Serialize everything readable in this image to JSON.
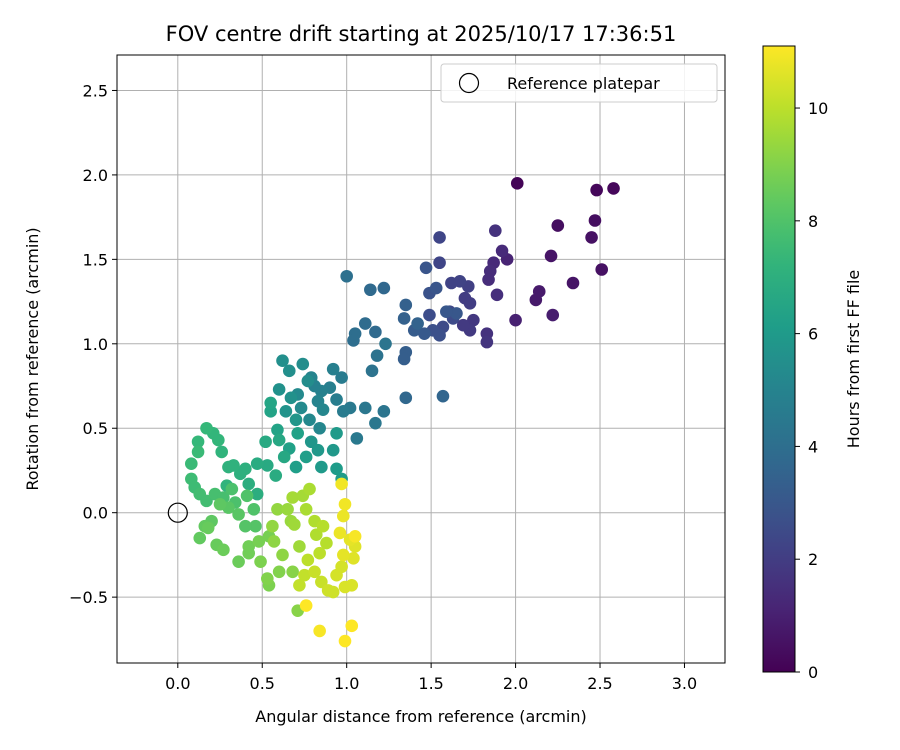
{
  "chart_data": {
    "type": "scatter",
    "title": "FOV centre drift starting at 2025/10/17 17:36:51",
    "xlabel": "Angular distance from reference (arcmin)",
    "ylabel": "Rotation from reference (arcmin)",
    "xlim": [
      -0.36,
      3.24
    ],
    "ylim": [
      -0.89,
      2.71
    ],
    "xticks": [
      0.0,
      0.5,
      1.0,
      1.5,
      2.0,
      2.5,
      3.0
    ],
    "xtick_labels": [
      "0.0",
      "0.5",
      "1.0",
      "1.5",
      "2.0",
      "2.5",
      "3.0"
    ],
    "yticks": [
      -0.5,
      0.0,
      0.5,
      1.0,
      1.5,
      2.0,
      2.5
    ],
    "ytick_labels": [
      "−0.5",
      "0.0",
      "0.5",
      "1.0",
      "1.5",
      "2.0",
      "2.5"
    ],
    "grid": true,
    "legend": {
      "position": "upper-right",
      "entries": [
        "Reference platepar"
      ]
    },
    "colorbar": {
      "label": "Hours from first FF file",
      "colormap": "viridis",
      "range": [
        0,
        11.1
      ],
      "ticks": [
        0,
        2,
        4,
        6,
        8,
        10
      ],
      "tick_labels": [
        "0",
        "2",
        "4",
        "6",
        "8",
        "10"
      ]
    },
    "reference_point": {
      "x": 0.0,
      "y": 0.0,
      "label": "Reference platepar"
    },
    "series": [
      {
        "columns": [
          "x",
          "y",
          "hours"
        ],
        "points": [
          [
            2.01,
            1.95,
            0.1
          ],
          [
            2.48,
            1.91,
            0.2
          ],
          [
            2.58,
            1.92,
            0.2
          ],
          [
            2.25,
            1.7,
            0.4
          ],
          [
            2.47,
            1.73,
            0.4
          ],
          [
            2.45,
            1.63,
            0.5
          ],
          [
            2.51,
            1.44,
            0.5
          ],
          [
            2.21,
            1.52,
            0.6
          ],
          [
            2.34,
            1.36,
            0.6
          ],
          [
            2.14,
            1.31,
            0.8
          ],
          [
            2.12,
            1.26,
            0.8
          ],
          [
            2.22,
            1.17,
            0.9
          ],
          [
            2.0,
            1.14,
            1.0
          ],
          [
            1.95,
            1.5,
            1.1
          ],
          [
            1.92,
            1.55,
            1.3
          ],
          [
            1.87,
            1.48,
            1.3
          ],
          [
            1.85,
            1.43,
            1.4
          ],
          [
            1.84,
            1.38,
            1.4
          ],
          [
            1.89,
            1.29,
            1.5
          ],
          [
            1.88,
            1.67,
            1.6
          ],
          [
            1.83,
            1.06,
            1.6
          ],
          [
            1.83,
            1.01,
            1.7
          ],
          [
            1.75,
            1.14,
            1.8
          ],
          [
            1.73,
            1.08,
            1.9
          ],
          [
            1.69,
            1.11,
            1.9
          ],
          [
            1.7,
            1.27,
            2.0
          ],
          [
            1.73,
            1.24,
            2.0
          ],
          [
            1.72,
            1.34,
            2.1
          ],
          [
            1.67,
            1.37,
            2.2
          ],
          [
            1.62,
            1.36,
            2.2
          ],
          [
            1.55,
            1.63,
            2.3
          ],
          [
            1.55,
            1.48,
            2.3
          ],
          [
            1.61,
            1.19,
            2.4
          ],
          [
            1.63,
            1.15,
            2.5
          ],
          [
            1.57,
            1.1,
            2.5
          ],
          [
            1.49,
            1.17,
            2.6
          ],
          [
            1.51,
            1.08,
            2.7
          ],
          [
            1.55,
            1.05,
            2.7
          ],
          [
            1.49,
            1.3,
            2.8
          ],
          [
            1.53,
            1.33,
            2.9
          ],
          [
            1.47,
            1.45,
            2.9
          ],
          [
            1.65,
            1.18,
            3.0
          ],
          [
            1.59,
            1.19,
            3.0
          ],
          [
            1.46,
            1.06,
            3.1
          ],
          [
            1.4,
            1.08,
            3.2
          ],
          [
            1.35,
            0.95,
            3.3
          ],
          [
            1.34,
            0.91,
            3.3
          ],
          [
            1.34,
            1.15,
            3.4
          ],
          [
            1.35,
            1.23,
            3.4
          ],
          [
            1.42,
            1.12,
            3.5
          ],
          [
            1.57,
            0.69,
            3.6
          ],
          [
            1.35,
            0.68,
            3.7
          ],
          [
            1.22,
            1.33,
            3.7
          ],
          [
            1.14,
            1.32,
            3.8
          ],
          [
            1.17,
            1.07,
            3.8
          ],
          [
            1.11,
            1.12,
            3.9
          ],
          [
            1.05,
            1.06,
            4.0
          ],
          [
            1.04,
            1.02,
            4.0
          ],
          [
            1.0,
            1.4,
            4.1
          ],
          [
            1.18,
            0.93,
            4.2
          ],
          [
            1.15,
            0.84,
            4.2
          ],
          [
            1.23,
            1.0,
            4.3
          ],
          [
            1.22,
            0.6,
            4.3
          ],
          [
            1.17,
            0.53,
            4.4
          ],
          [
            1.11,
            0.62,
            4.4
          ],
          [
            1.06,
            0.44,
            4.5
          ],
          [
            1.02,
            0.62,
            4.5
          ],
          [
            0.98,
            0.6,
            4.6
          ],
          [
            0.97,
            0.8,
            4.6
          ],
          [
            0.94,
            0.67,
            4.7
          ],
          [
            0.92,
            0.85,
            4.8
          ],
          [
            0.9,
            0.74,
            4.8
          ],
          [
            0.85,
            0.72,
            4.9
          ],
          [
            0.81,
            0.75,
            4.9
          ],
          [
            0.79,
            0.8,
            5.0
          ],
          [
            0.83,
            0.66,
            5.0
          ],
          [
            0.86,
            0.61,
            5.1
          ],
          [
            0.84,
            0.5,
            5.1
          ],
          [
            0.78,
            0.55,
            5.2
          ],
          [
            0.73,
            0.62,
            5.3
          ],
          [
            0.71,
            0.7,
            5.3
          ],
          [
            0.77,
            0.78,
            5.4
          ],
          [
            0.74,
            0.88,
            5.4
          ],
          [
            0.66,
            0.84,
            5.5
          ],
          [
            0.62,
            0.9,
            5.5
          ],
          [
            0.6,
            0.73,
            5.6
          ],
          [
            0.67,
            0.68,
            5.6
          ],
          [
            0.64,
            0.6,
            5.7
          ],
          [
            0.7,
            0.55,
            5.8
          ],
          [
            0.79,
            0.42,
            5.8
          ],
          [
            0.83,
            0.37,
            5.9
          ],
          [
            0.92,
            0.37,
            5.9
          ],
          [
            0.94,
            0.47,
            6.0
          ],
          [
            0.85,
            0.27,
            6.0
          ],
          [
            0.94,
            0.26,
            6.1
          ],
          [
            0.97,
            0.2,
            6.1
          ],
          [
            0.76,
            0.33,
            6.2
          ],
          [
            0.7,
            0.27,
            6.2
          ],
          [
            0.71,
            0.47,
            6.3
          ],
          [
            0.66,
            0.38,
            6.3
          ],
          [
            0.59,
            0.49,
            6.4
          ],
          [
            0.55,
            0.6,
            6.4
          ],
          [
            0.55,
            0.65,
            6.5
          ],
          [
            0.6,
            0.43,
            6.6
          ],
          [
            0.63,
            0.33,
            6.6
          ],
          [
            0.52,
            0.42,
            6.7
          ],
          [
            0.53,
            0.28,
            6.7
          ],
          [
            0.58,
            0.22,
            6.8
          ],
          [
            0.47,
            0.29,
            6.8
          ],
          [
            0.47,
            0.11,
            6.9
          ],
          [
            0.42,
            0.17,
            6.9
          ],
          [
            0.4,
            0.26,
            7.0
          ],
          [
            0.37,
            0.23,
            7.0
          ],
          [
            0.33,
            0.28,
            7.1
          ],
          [
            0.3,
            0.27,
            7.1
          ],
          [
            0.29,
            0.16,
            7.2
          ],
          [
            0.26,
            0.36,
            7.2
          ],
          [
            0.24,
            0.43,
            7.3
          ],
          [
            0.21,
            0.47,
            7.3
          ],
          [
            0.17,
            0.5,
            7.4
          ],
          [
            0.12,
            0.42,
            7.4
          ],
          [
            0.12,
            0.36,
            7.5
          ],
          [
            0.08,
            0.29,
            7.5
          ],
          [
            0.08,
            0.2,
            7.6
          ],
          [
            0.1,
            0.15,
            7.6
          ],
          [
            0.13,
            0.11,
            7.7
          ],
          [
            0.17,
            0.07,
            7.7
          ],
          [
            0.22,
            0.11,
            7.8
          ],
          [
            0.27,
            0.09,
            7.8
          ],
          [
            0.32,
            0.14,
            7.9
          ],
          [
            0.34,
            0.06,
            7.9
          ],
          [
            0.41,
            0.1,
            8.0
          ],
          [
            0.45,
            0.02,
            8.0
          ],
          [
            0.46,
            -0.08,
            8.1
          ],
          [
            0.4,
            -0.08,
            8.1
          ],
          [
            0.36,
            -0.01,
            8.2
          ],
          [
            0.3,
            0.03,
            8.2
          ],
          [
            0.25,
            0.05,
            8.3
          ],
          [
            0.2,
            -0.05,
            8.3
          ],
          [
            0.16,
            -0.08,
            8.4
          ],
          [
            0.13,
            -0.15,
            8.4
          ],
          [
            0.18,
            -0.09,
            8.5
          ],
          [
            0.23,
            -0.19,
            8.5
          ],
          [
            0.27,
            -0.22,
            8.6
          ],
          [
            0.36,
            -0.29,
            8.6
          ],
          [
            0.42,
            -0.24,
            8.7
          ],
          [
            0.42,
            -0.2,
            8.7
          ],
          [
            0.48,
            -0.17,
            8.8
          ],
          [
            0.54,
            -0.14,
            8.8
          ],
          [
            0.49,
            -0.29,
            8.9
          ],
          [
            0.54,
            -0.43,
            8.9
          ],
          [
            0.53,
            -0.39,
            9.0
          ],
          [
            0.6,
            -0.35,
            9.0
          ],
          [
            0.68,
            -0.35,
            9.1
          ],
          [
            0.71,
            -0.58,
            9.1
          ],
          [
            0.62,
            -0.25,
            9.2
          ],
          [
            0.57,
            -0.17,
            9.2
          ],
          [
            0.56,
            -0.08,
            9.3
          ],
          [
            0.59,
            0.02,
            9.3
          ],
          [
            0.65,
            0.02,
            9.4
          ],
          [
            0.67,
            -0.05,
            9.4
          ],
          [
            0.69,
            -0.07,
            9.5
          ],
          [
            0.72,
            -0.2,
            9.5
          ],
          [
            0.68,
            0.09,
            9.6
          ],
          [
            0.74,
            0.1,
            9.6
          ],
          [
            0.78,
            0.14,
            9.7
          ],
          [
            0.76,
            0.02,
            9.7
          ],
          [
            0.81,
            -0.05,
            9.8
          ],
          [
            0.82,
            -0.13,
            9.8
          ],
          [
            0.86,
            -0.08,
            9.9
          ],
          [
            0.88,
            -0.18,
            9.9
          ],
          [
            0.84,
            -0.24,
            10.0
          ],
          [
            0.77,
            -0.28,
            10.0
          ],
          [
            0.75,
            -0.37,
            10.1
          ],
          [
            0.72,
            -0.43,
            10.1
          ],
          [
            0.81,
            -0.35,
            10.2
          ],
          [
            0.85,
            -0.41,
            10.2
          ],
          [
            0.89,
            -0.46,
            10.3
          ],
          [
            0.92,
            -0.47,
            10.3
          ],
          [
            0.94,
            -0.37,
            10.4
          ],
          [
            0.97,
            -0.32,
            10.4
          ],
          [
            0.99,
            -0.44,
            10.5
          ],
          [
            1.03,
            -0.43,
            10.5
          ],
          [
            1.04,
            -0.27,
            10.6
          ],
          [
            1.05,
            -0.2,
            10.6
          ],
          [
            1.02,
            -0.16,
            10.7
          ],
          [
            0.98,
            -0.25,
            10.7
          ],
          [
            0.96,
            -0.12,
            10.8
          ],
          [
            0.98,
            -0.02,
            10.8
          ],
          [
            0.97,
            0.17,
            10.9
          ],
          [
            0.99,
            0.05,
            10.9
          ],
          [
            1.05,
            -0.14,
            11.0
          ],
          [
            0.84,
            -0.7,
            11.0
          ],
          [
            0.99,
            -0.76,
            11.1
          ],
          [
            1.03,
            -0.67,
            11.1
          ],
          [
            0.76,
            -0.55,
            11.1
          ]
        ]
      }
    ]
  }
}
